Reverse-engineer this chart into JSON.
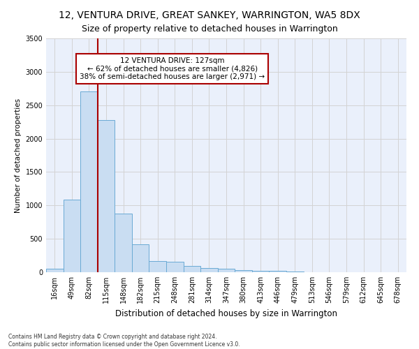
{
  "title": "12, VENTURA DRIVE, GREAT SANKEY, WARRINGTON, WA5 8DX",
  "subtitle": "Size of property relative to detached houses in Warrington",
  "xlabel": "Distribution of detached houses by size in Warrington",
  "ylabel": "Number of detached properties",
  "footnote": "Contains HM Land Registry data © Crown copyright and database right 2024.\nContains public sector information licensed under the Open Government Licence v3.0.",
  "bar_labels": [
    "16sqm",
    "49sqm",
    "82sqm",
    "115sqm",
    "148sqm",
    "182sqm",
    "215sqm",
    "248sqm",
    "281sqm",
    "314sqm",
    "347sqm",
    "380sqm",
    "413sqm",
    "446sqm",
    "479sqm",
    "513sqm",
    "546sqm",
    "579sqm",
    "612sqm",
    "645sqm",
    "678sqm"
  ],
  "bar_values": [
    55,
    1090,
    2710,
    2280,
    880,
    415,
    165,
    160,
    95,
    60,
    50,
    30,
    25,
    20,
    10,
    5,
    5,
    3,
    2,
    1,
    1
  ],
  "bar_color": "#c9ddf2",
  "bar_edge_color": "#6aaad4",
  "grid_color": "#d3d3d3",
  "bg_color": "#eaf0fb",
  "property_label": "12 VENTURA DRIVE: 127sqm",
  "annotation_line1": "← 62% of detached houses are smaller (4,826)",
  "annotation_line2": "38% of semi-detached houses are larger (2,971) →",
  "vline_color": "#aa0000",
  "annotation_box_color": "#aa0000",
  "ylim": [
    0,
    3500
  ],
  "vline_bar_index": 2.5,
  "title_fontsize": 10,
  "subtitle_fontsize": 9
}
